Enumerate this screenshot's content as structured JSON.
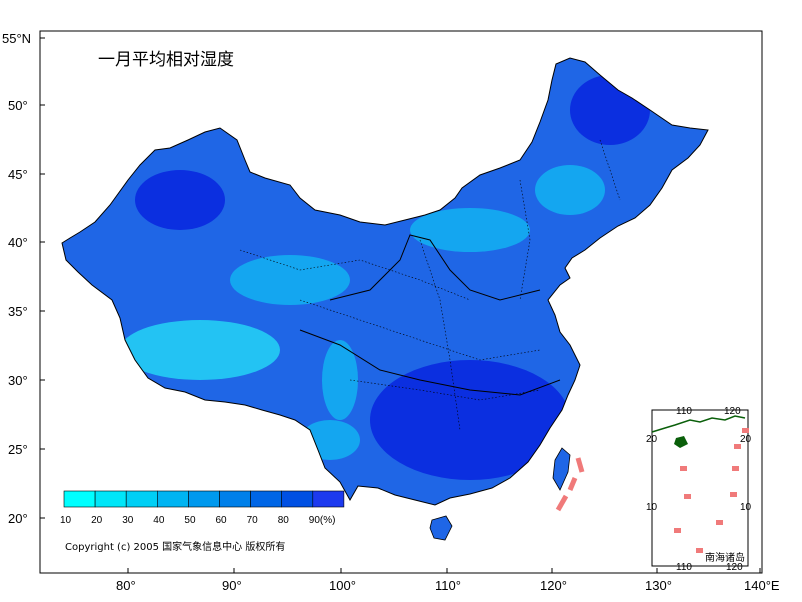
{
  "map": {
    "title": "一月平均相对湿度",
    "copyright": "Copyright (c) 2005 国家气象信息中心 版权所有",
    "x_ticks": [
      "80°",
      "90°",
      "100°",
      "110°",
      "120°",
      "130°",
      "140°E"
    ],
    "y_ticks": [
      "55°N",
      "50°",
      "45°",
      "40°",
      "35°",
      "30°",
      "25°",
      "20°"
    ],
    "legend": {
      "labels": [
        "10",
        "20",
        "30",
        "40",
        "50",
        "60",
        "70",
        "80",
        "90(%)"
      ],
      "colors": [
        "#00ffff",
        "#00e6f8",
        "#00cff5",
        "#00b4f2",
        "#0099ee",
        "#0080ea",
        "#0066e6",
        "#0050e3",
        "#1d3aef"
      ]
    },
    "inset": {
      "caption": "南海诸岛",
      "top_ticks": [
        "110",
        "120"
      ],
      "bottom_ticks": [
        "110",
        "120"
      ],
      "left_ticks": [
        "20",
        "10"
      ],
      "right_ticks": [
        "20",
        "10"
      ]
    },
    "colors": {
      "land_base": "#1f66e6",
      "humid_dark": "#0b2fe0",
      "dry_light": "#23c3f3",
      "mid": "#14a6f0",
      "dash": "#f07a7a"
    }
  }
}
